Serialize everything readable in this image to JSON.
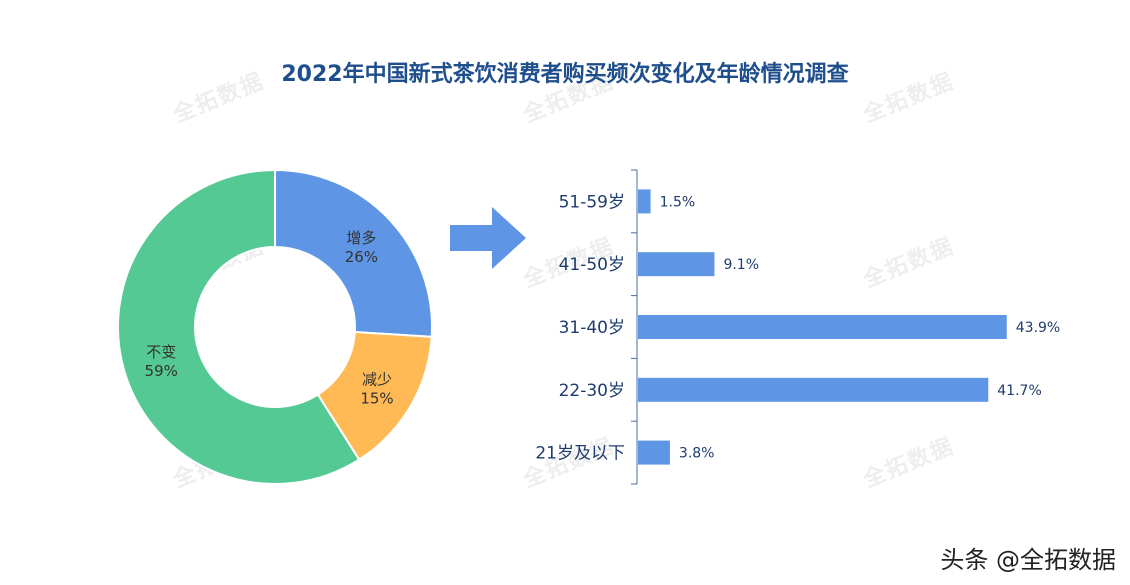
{
  "title": "2022年中国新式茶饮消费者购买频次变化及年龄情况调查",
  "watermark": "全拓数据",
  "credit": "头条 @全拓数据",
  "colors": {
    "increase": "#5f95e5",
    "decrease": "#ffb955",
    "unchanged": "#55c993",
    "bar": "#5f95e5",
    "arrow": "#5f95e5",
    "title": "#1f4e8c",
    "axis_text": "#1f3c6e",
    "pie_label": "#333333"
  },
  "icons": {
    "arrow": "right-arrow-icon"
  },
  "chart_data": [
    {
      "type": "pie",
      "variant": "donut",
      "categories": [
        "增多",
        "减少",
        "不变"
      ],
      "values": [
        26,
        15,
        59
      ],
      "value_labels": [
        "26%",
        "15%",
        "59%"
      ],
      "unit": "%"
    },
    {
      "type": "bar",
      "orientation": "horizontal",
      "categories": [
        "51-59岁",
        "41-50岁",
        "31-40岁",
        "22-30岁",
        "21岁及以下"
      ],
      "values": [
        1.5,
        9.1,
        43.9,
        41.7,
        3.8
      ],
      "value_labels": [
        "1.5%",
        "9.1%",
        "43.9%",
        "41.7%",
        "3.8%"
      ],
      "unit": "%",
      "xlim": [
        0,
        45
      ],
      "grid": false
    }
  ]
}
